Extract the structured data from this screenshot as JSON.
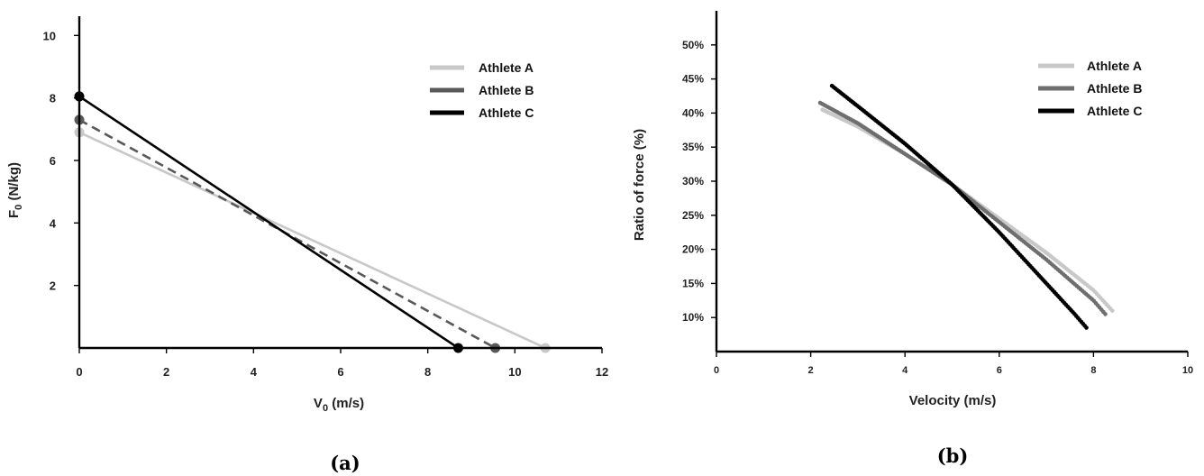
{
  "chart_data": [
    {
      "panel": "a",
      "type": "line",
      "panel_label": "(a)",
      "ylabel_main": "F",
      "ylabel_sub": "0",
      "ylabel_unit": " (N/kg)",
      "xlabel_main": "V",
      "xlabel_sub": "0",
      "xlabel_unit": " (m/s)",
      "xlim": [
        0,
        12
      ],
      "ylim": [
        0,
        10.5
      ],
      "xticks": [
        0,
        2,
        4,
        6,
        8,
        10,
        12
      ],
      "yticks": [
        2,
        4,
        6,
        8,
        10
      ],
      "legend_position": "top-right",
      "series": [
        {
          "name": "Athlete A",
          "color": "#c8c8c8",
          "dash": "solid",
          "F0": 6.9,
          "V0": 10.7
        },
        {
          "name": "Athlete B",
          "color": "#595959",
          "dash": "dashed",
          "F0": 7.3,
          "V0": 9.55
        },
        {
          "name": "Athlete C",
          "color": "#000000",
          "dash": "solid",
          "F0": 8.05,
          "V0": 8.7
        }
      ]
    },
    {
      "panel": "b",
      "type": "scatter",
      "panel_label": "(b)",
      "ylabel": "Ratio of force (%)",
      "xlabel": "Velocity (m/s)",
      "xlim": [
        0,
        10
      ],
      "ylim": [
        5,
        55
      ],
      "xticks": [
        0,
        2,
        4,
        6,
        8,
        10
      ],
      "yticks": [
        "10%",
        "15%",
        "20%",
        "25%",
        "30%",
        "35%",
        "40%",
        "45%",
        "50%"
      ],
      "legend_position": "top-right",
      "series": [
        {
          "name": "Athlete A",
          "color": "#c8c8c8",
          "x": [
            2.25,
            3.0,
            4.0,
            5.0,
            6.0,
            7.0,
            8.0,
            8.4
          ],
          "y": [
            40.5,
            38.0,
            34.0,
            29.5,
            24.5,
            19.5,
            14.0,
            11.0
          ]
        },
        {
          "name": "Athlete B",
          "color": "#6e6e6e",
          "x": [
            2.2,
            3.0,
            4.0,
            5.0,
            6.0,
            7.0,
            8.0,
            8.25
          ],
          "y": [
            41.5,
            38.5,
            34.0,
            29.5,
            24.0,
            18.5,
            12.5,
            10.5
          ]
        },
        {
          "name": "Athlete C",
          "color": "#000000",
          "x": [
            2.45,
            3.0,
            4.0,
            5.0,
            6.0,
            7.0,
            7.6,
            7.85
          ],
          "y": [
            44.0,
            41.0,
            35.5,
            29.5,
            22.5,
            15.0,
            10.5,
            8.5
          ]
        }
      ]
    }
  ]
}
